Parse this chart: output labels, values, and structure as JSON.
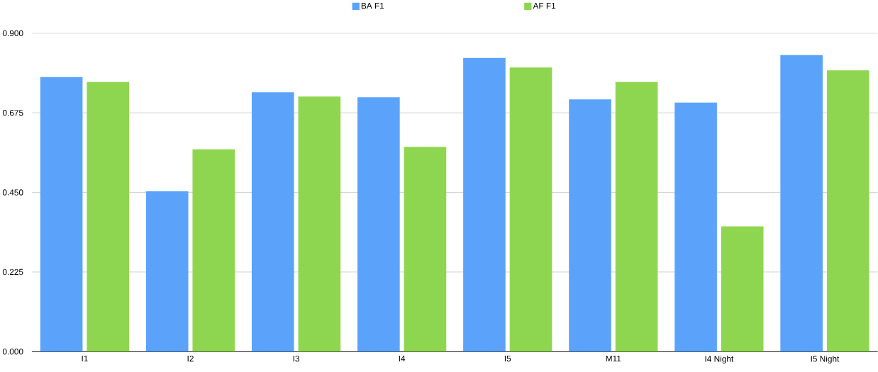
{
  "chart_data": {
    "type": "bar",
    "categories": [
      "I1",
      "I2",
      "I3",
      "I4",
      "I5",
      "M11",
      "I4 Night",
      "I5 Night"
    ],
    "series": [
      {
        "name": "BA F1",
        "color": "#5ba3fa",
        "values": [
          0.776,
          0.453,
          0.733,
          0.719,
          0.83,
          0.713,
          0.704,
          0.838
        ]
      },
      {
        "name": "AF F1",
        "color": "#8fd650",
        "values": [
          0.762,
          0.572,
          0.721,
          0.579,
          0.803,
          0.762,
          0.354,
          0.795
        ]
      }
    ],
    "ylim": [
      0,
      0.9
    ],
    "yticks": [
      {
        "value": 0,
        "label": "0.000"
      },
      {
        "value": 0.225,
        "label": "0.225"
      },
      {
        "value": 0.45,
        "label": "0.450"
      },
      {
        "value": 0.675,
        "label": "0.675"
      },
      {
        "value": 0.9,
        "label": "0.900"
      }
    ],
    "grid": "y",
    "legend": "top"
  }
}
